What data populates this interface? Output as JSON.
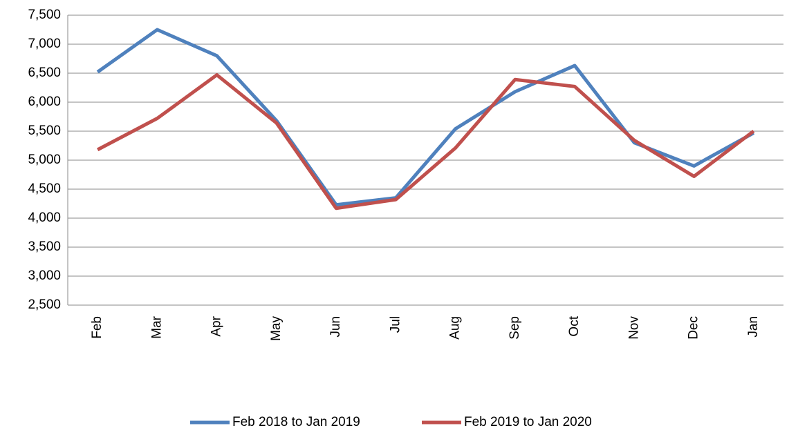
{
  "chart_data": {
    "type": "line",
    "categories": [
      "Feb",
      "Mar",
      "Apr",
      "May",
      "Jun",
      "Jul",
      "Aug",
      "Sep",
      "Oct",
      "Nov",
      "Dec",
      "Jan"
    ],
    "series": [
      {
        "name": "Feb 2018 to Jan 2019",
        "color": "#4f81bd",
        "values": [
          6520,
          7250,
          6800,
          5680,
          4230,
          4350,
          5540,
          6180,
          6630,
          5300,
          4900,
          5470
        ]
      },
      {
        "name": "Feb 2019 to Jan 2020",
        "color": "#c0504d",
        "values": [
          5180,
          5720,
          6470,
          5640,
          4170,
          4320,
          5210,
          6390,
          6270,
          5340,
          4720,
          5500
        ]
      }
    ],
    "ylim": [
      2500,
      7500
    ],
    "yticks": [
      {
        "value": 2500,
        "label": "2,500"
      },
      {
        "value": 3000,
        "label": "3,000"
      },
      {
        "value": 3500,
        "label": "3,500"
      },
      {
        "value": 4000,
        "label": "4,000"
      },
      {
        "value": 4500,
        "label": "4,500"
      },
      {
        "value": 5000,
        "label": "5,000"
      },
      {
        "value": 5500,
        "label": "5,500"
      },
      {
        "value": 6000,
        "label": "6,000"
      },
      {
        "value": 6500,
        "label": "6,500"
      },
      {
        "value": 7000,
        "label": "7,000"
      },
      {
        "value": 7500,
        "label": "7,500"
      }
    ],
    "grid": true,
    "legend": "bottom"
  }
}
